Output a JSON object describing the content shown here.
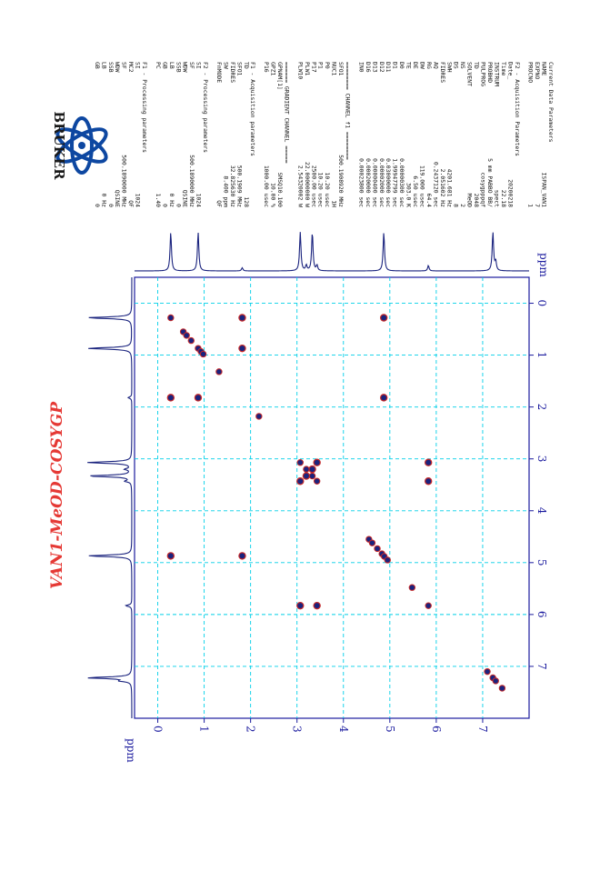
{
  "chart_data": {
    "type": "heatmap",
    "experiment_title": "VAN1-MeOD-COSYGP",
    "axis_unit": "ppm",
    "f1_unit": "ppm",
    "f2_unit": "ppm",
    "axis_range": [
      -0.5,
      8.0
    ],
    "ticks": [
      "0",
      "1",
      "2",
      "3",
      "4",
      "5",
      "6",
      "7"
    ],
    "grid": true,
    "diagonal_peaks": [
      0.28,
      0.55,
      0.62,
      0.72,
      0.87,
      0.93,
      0.98,
      1.32,
      2.18,
      3.07,
      3.2,
      3.33,
      3.43,
      4.55,
      4.62,
      4.73,
      4.83,
      4.88,
      4.95,
      5.48,
      5.83,
      7.1,
      7.22,
      7.28,
      7.42
    ],
    "cross_peaks": [
      {
        "f2": 0.28,
        "f1": 1.82
      },
      {
        "f2": 0.28,
        "f1": 4.87
      },
      {
        "f2": 0.87,
        "f1": 1.82
      },
      {
        "f2": 1.82,
        "f1": 0.28
      },
      {
        "f2": 1.82,
        "f1": 0.87
      },
      {
        "f2": 1.82,
        "f1": 4.87
      },
      {
        "f2": 4.87,
        "f1": 0.28
      },
      {
        "f2": 4.87,
        "f1": 1.82
      },
      {
        "f2": 3.07,
        "f1": 3.43
      },
      {
        "f2": 3.43,
        "f1": 3.07
      },
      {
        "f2": 3.07,
        "f1": 5.83
      },
      {
        "f2": 3.43,
        "f1": 5.83
      },
      {
        "f2": 5.83,
        "f1": 3.07
      },
      {
        "f2": 5.83,
        "f1": 3.43
      },
      {
        "f2": 3.33,
        "f1": 3.2
      },
      {
        "f2": 3.2,
        "f1": 3.33
      }
    ],
    "projection_peaks": [
      {
        "ppm": 0.28,
        "height": 0.85
      },
      {
        "ppm": 0.87,
        "height": 0.85
      },
      {
        "ppm": 1.82,
        "height": 0.07
      },
      {
        "ppm": 3.07,
        "height": 0.85
      },
      {
        "ppm": 3.2,
        "height": 0.12
      },
      {
        "ppm": 3.33,
        "height": 0.85
      },
      {
        "ppm": 3.43,
        "height": 0.12
      },
      {
        "ppm": 4.87,
        "height": 0.85
      },
      {
        "ppm": 5.83,
        "height": 0.12
      },
      {
        "ppm": 7.22,
        "height": 0.85
      },
      {
        "ppm": 7.28,
        "height": 0.2
      }
    ],
    "colors": {
      "positive": "#1a237e",
      "negative": "#c62828",
      "grid": "#00cfe8",
      "axis": "#1a1a9e",
      "title": "#e53935"
    }
  },
  "brand": {
    "name": "BRUKER"
  },
  "params": [
    [
      "Current Data Parameters",
      ""
    ],
    [
      "NAME",
      "ISPAN_VAN1"
    ],
    [
      "EXPNO",
      "7"
    ],
    [
      "PROCNO",
      "1"
    ],
    [
      "",
      ""
    ],
    [
      "F2 - Acquisition Parameters",
      ""
    ],
    [
      "Date_",
      "20200218"
    ],
    [
      "Time",
      "22.18"
    ],
    [
      "INSTRUM",
      "spect"
    ],
    [
      "PROBHD",
      "5 mm PABBO BB/"
    ],
    [
      "PULPROG",
      "cosygpppqf"
    ],
    [
      "TD",
      "2048"
    ],
    [
      "SOLVENT",
      "MeOD"
    ],
    [
      "NS",
      "2"
    ],
    [
      "DS",
      "8"
    ],
    [
      "SWH",
      "4201.681 Hz"
    ],
    [
      "FIDRES",
      "2.051602 Hz"
    ],
    [
      "AQ",
      "0.2437120 sec"
    ],
    [
      "RG",
      "64.4"
    ],
    [
      "DW",
      "119.000 usec"
    ],
    [
      "DE",
      "6.50 usec"
    ],
    [
      "TE",
      "303.0 K"
    ],
    [
      "D0",
      "0.00000300 sec"
    ],
    [
      "D1",
      "1.99947799 sec"
    ],
    [
      "D11",
      "0.03000000 sec"
    ],
    [
      "D12",
      "0.00002000 sec"
    ],
    [
      "D13",
      "0.00000400 sec"
    ],
    [
      "D16",
      "0.00020000 sec"
    ],
    [
      "IN0",
      "0.00023800 sec"
    ],
    [
      "",
      ""
    ],
    [
      "======== CHANNEL f1 ========",
      ""
    ],
    [
      "SFO1",
      "500.1908920 MHz"
    ],
    [
      "NUC1",
      "1H"
    ],
    [
      "P0",
      "10.20 usec"
    ],
    [
      "P1",
      "10.20 usec"
    ],
    [
      "P17",
      "2500.00 usec"
    ],
    [
      "PLW1",
      "22.00000000 W"
    ],
    [
      "PLW10",
      "2.54320002 W"
    ],
    [
      "",
      ""
    ],
    [
      "====== GRADIENT CHANNEL =====",
      ""
    ],
    [
      "GPNAM[1]",
      "SMSQ10.100"
    ],
    [
      "GPZ1",
      "10.00 %"
    ],
    [
      "P16",
      "1000.00 usec"
    ],
    [
      "",
      ""
    ],
    [
      "F1 - Acquisition parameters",
      ""
    ],
    [
      "TD",
      "128"
    ],
    [
      "SFO1",
      "500.1909 MHz"
    ],
    [
      "FIDRES",
      "32.825630 Hz"
    ],
    [
      "SW",
      "8.400 ppm"
    ],
    [
      "FnMODE",
      "QF"
    ],
    [
      "",
      ""
    ],
    [
      "F2 - Processing parameters",
      ""
    ],
    [
      "SI",
      "1024"
    ],
    [
      "SF",
      "500.1890000 MHz"
    ],
    [
      "WDW",
      "QSINE"
    ],
    [
      "SSB",
      "0"
    ],
    [
      "LB",
      "0 Hz"
    ],
    [
      "GB",
      "0"
    ],
    [
      "PC",
      "1.40"
    ],
    [
      "",
      ""
    ],
    [
      "F1 - Processing parameters",
      ""
    ],
    [
      "SI",
      "1024"
    ],
    [
      "MC2",
      "QF"
    ],
    [
      "SF",
      "500.1890000 MHz"
    ],
    [
      "WDW",
      "QSINE"
    ],
    [
      "SSB",
      "0"
    ],
    [
      "LB",
      "0 Hz"
    ],
    [
      "GB",
      "0"
    ]
  ]
}
